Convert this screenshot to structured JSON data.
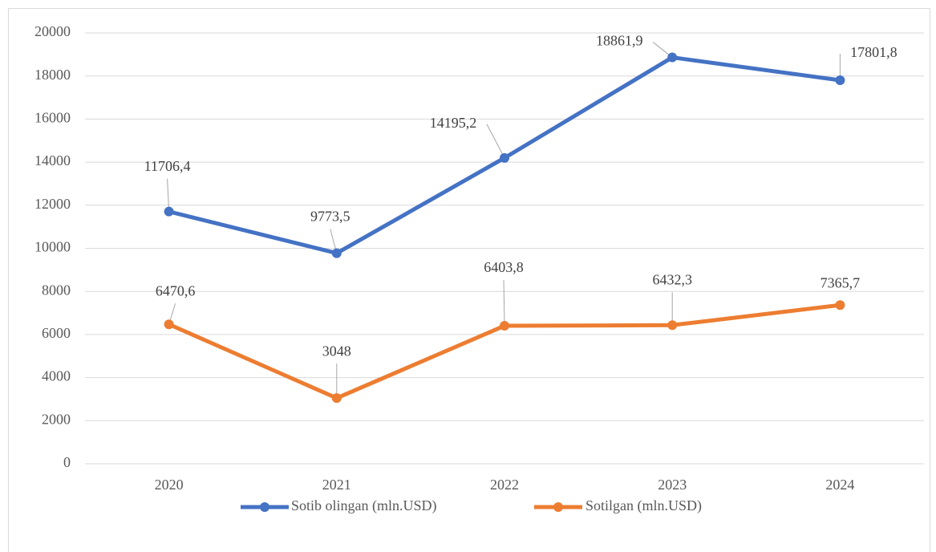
{
  "chart_data": {
    "type": "line",
    "categories": [
      "2020",
      "2021",
      "2022",
      "2023",
      "2024"
    ],
    "series": [
      {
        "name": "Sotib olingan (mln.USD)",
        "color": "#4472c4",
        "values": [
          11706.4,
          9773.5,
          14195.2,
          18861.9,
          17801.8
        ],
        "value_labels": [
          "11706,4",
          "9773,5",
          "14195,2",
          "18861,9",
          "17801,8"
        ]
      },
      {
        "name": "Sotilgan (mln.USD)",
        "color": "#ed7d31",
        "values": [
          6470.6,
          3048,
          6403.8,
          6432.3,
          7365.7
        ],
        "value_labels": [
          "6470,6",
          "3048",
          "6403,8",
          "6432,3",
          "7365,7"
        ]
      }
    ],
    "ylim": [
      0,
      20000
    ],
    "yticks": [
      0,
      2000,
      4000,
      6000,
      8000,
      10000,
      12000,
      14000,
      16000,
      18000,
      20000
    ],
    "grid": true,
    "legend": "bottom"
  }
}
